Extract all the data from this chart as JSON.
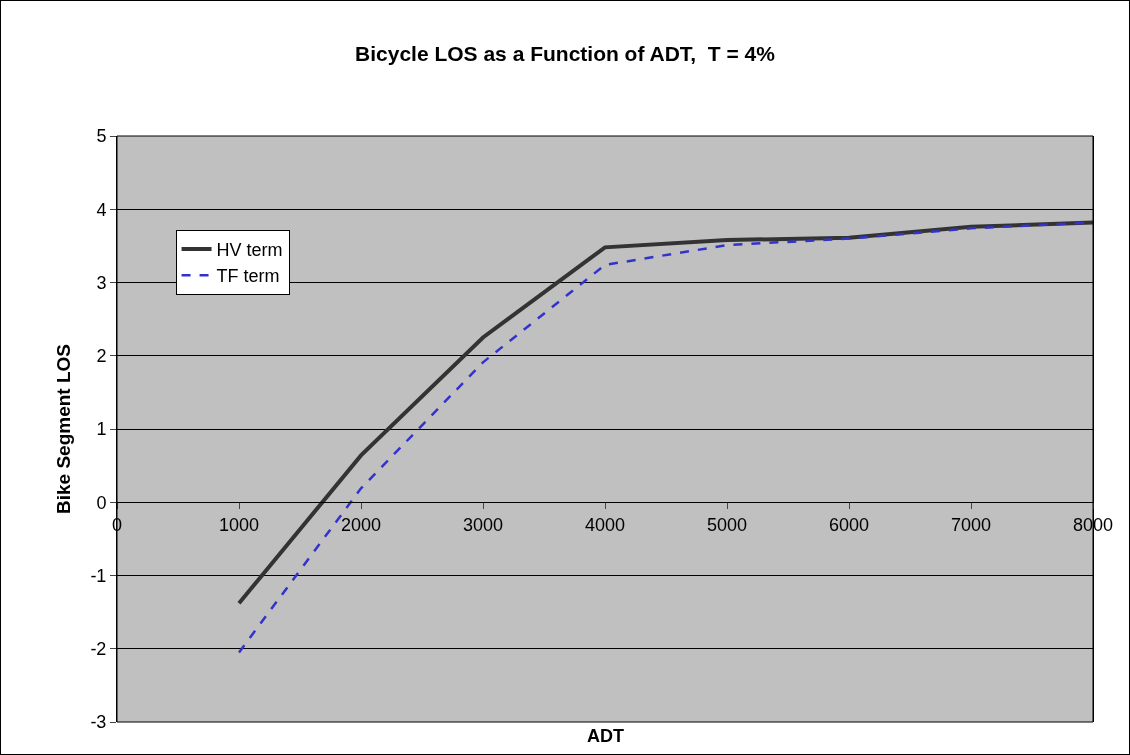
{
  "chart_data": {
    "type": "line",
    "title": "Bicycle LOS as a Function of ADT,  T = 4%",
    "xlabel": "ADT",
    "ylabel": "Bike Segment LOS",
    "x": [
      1000,
      2000,
      3000,
      4000,
      5000,
      6000,
      7000,
      8000
    ],
    "series": [
      {
        "name": "HV term",
        "color": "#333333",
        "line_style": "solid",
        "values": [
          -1.38,
          0.64,
          2.25,
          3.48,
          3.58,
          3.61,
          3.76,
          3.82
        ]
      },
      {
        "name": "TF term",
        "color": "#3333cc",
        "line_style": "dashed",
        "values": [
          -2.05,
          0.19,
          1.91,
          3.24,
          3.51,
          3.6,
          3.74,
          3.82
        ]
      }
    ],
    "xlim": [
      0,
      8000
    ],
    "xticks": [
      0,
      1000,
      2000,
      3000,
      4000,
      5000,
      6000,
      7000,
      8000
    ],
    "ylim": [
      -3,
      5
    ],
    "yticks": [
      -3,
      -2,
      -1,
      0,
      1,
      2,
      3,
      4,
      5
    ],
    "grid": "y",
    "legend": "top left",
    "marker": "none"
  }
}
